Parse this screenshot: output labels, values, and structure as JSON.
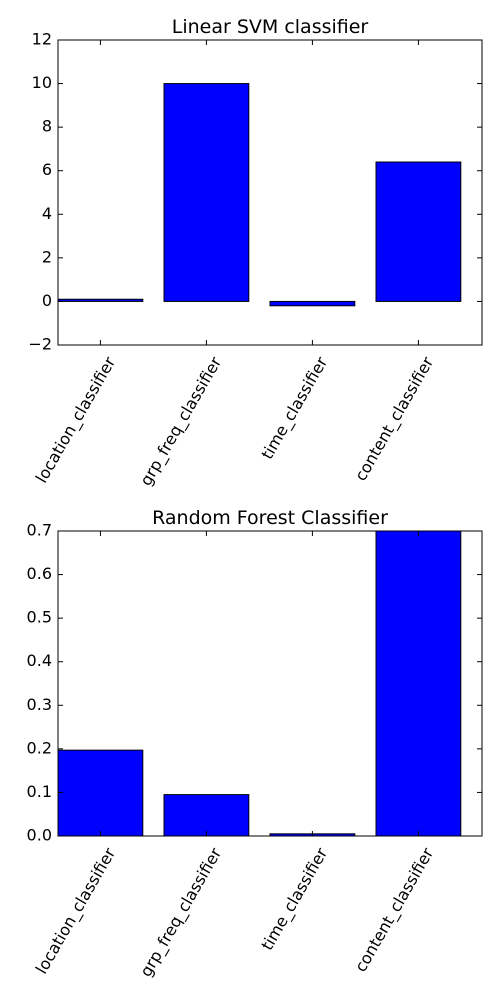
{
  "chart_data": [
    {
      "type": "bar",
      "title": "Linear SVM classifier",
      "categories": [
        "location_classifier",
        "grp_freq_classifier",
        "time_classifier",
        "content_classifier"
      ],
      "values": [
        0.1,
        10.0,
        -0.2,
        6.4
      ],
      "ylim": [
        -2,
        12
      ],
      "yticks": [
        -2,
        0,
        2,
        4,
        6,
        8,
        10,
        12
      ],
      "ytick_labels": [
        "−2",
        "0",
        "2",
        "4",
        "6",
        "8",
        "10",
        "12"
      ],
      "bar_color": "#0000ff",
      "grid": false,
      "legend": "none"
    },
    {
      "type": "bar",
      "title": "Random Forest Classifier",
      "categories": [
        "location_classifier",
        "grp_freq_classifier",
        "time_classifier",
        "content_classifier"
      ],
      "values": [
        0.197,
        0.095,
        0.005,
        0.7
      ],
      "ylim": [
        0,
        0.7
      ],
      "yticks": [
        0,
        0.1,
        0.2,
        0.3,
        0.4,
        0.5,
        0.6,
        0.7
      ],
      "ytick_labels": [
        "0.0",
        "0.1",
        "0.2",
        "0.3",
        "0.4",
        "0.5",
        "0.6",
        "0.7"
      ],
      "bar_color": "#0000ff",
      "grid": false,
      "legend": "none"
    }
  ]
}
